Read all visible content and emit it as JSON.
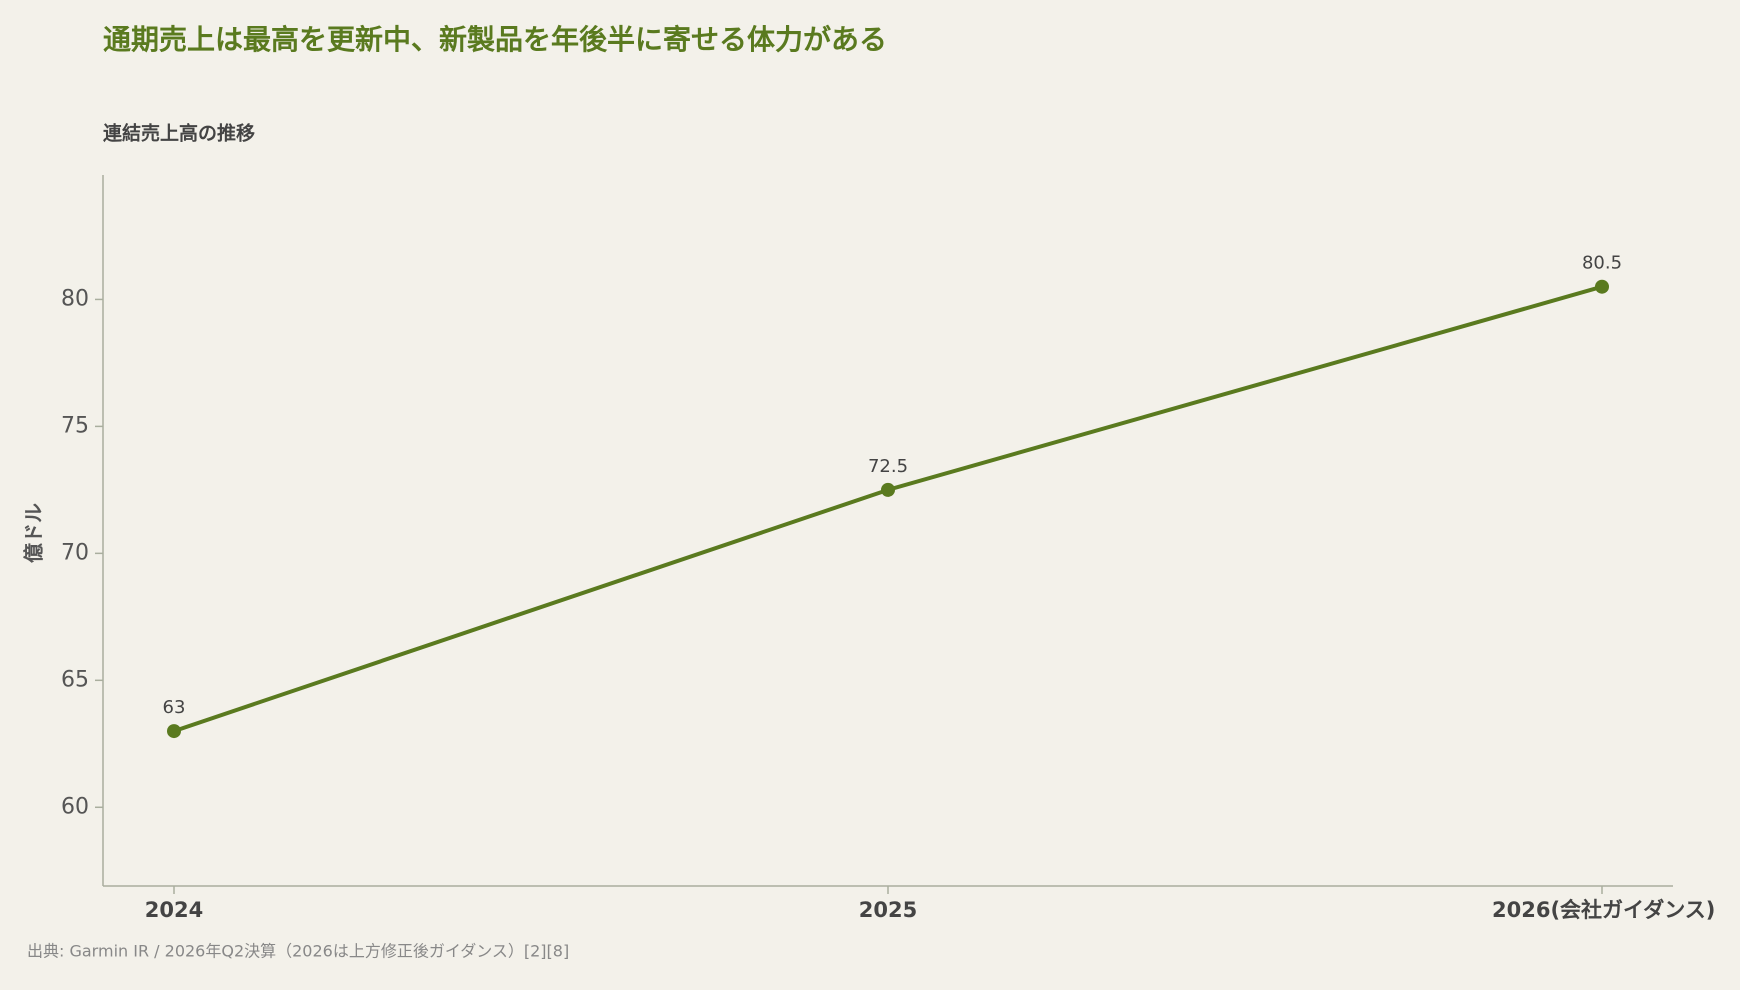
{
  "chart_data": {
    "type": "line",
    "title": "通期売上は最高を更新中、新製品を年後半に寄せる体力がある",
    "subtitle": "連結売上高の推移",
    "y_label": "億ドル",
    "source": "出典: Garmin IR / 2026年Q2決算（2026は上方修正後ガイダンス）[2][8]",
    "categories": [
      "2024",
      "2025",
      "2026(会社ガイダンス)"
    ],
    "values": [
      63,
      72.5,
      80.5
    ],
    "color": "#5a7a1f",
    "ylim": [
      56.9,
      84.9
    ],
    "yticks": [
      60,
      65,
      70,
      75,
      80
    ]
  }
}
